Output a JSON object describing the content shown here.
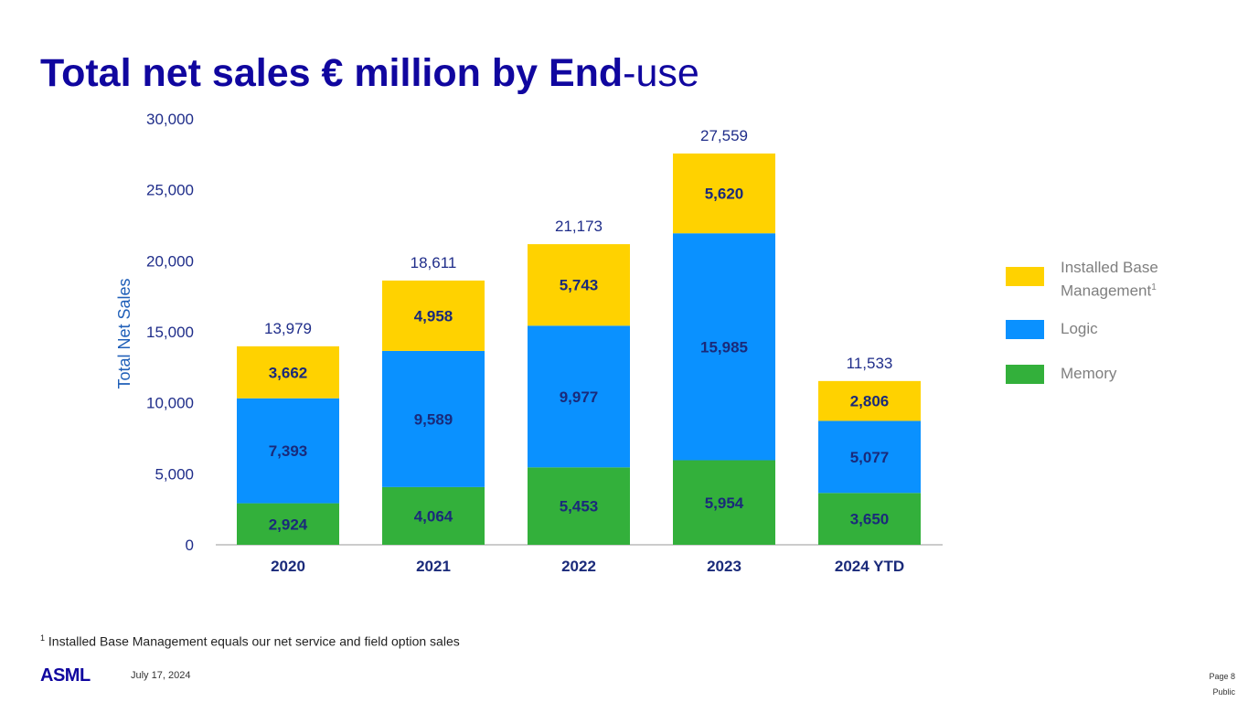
{
  "title": {
    "bold": "Total net sales € million by End",
    "light": "-use"
  },
  "chart_data": {
    "type": "bar",
    "stacked": true,
    "categories": [
      "2020",
      "2021",
      "2022",
      "2023",
      "2024 YTD"
    ],
    "series": [
      {
        "name": "Memory",
        "color": "#33B03B",
        "values": [
          2924,
          4064,
          5453,
          5954,
          3650
        ],
        "labels": [
          "2,924",
          "4,064",
          "5,453",
          "5,954",
          "3,650"
        ]
      },
      {
        "name": "Logic",
        "color": "#0A91FF",
        "values": [
          7393,
          9589,
          9977,
          15985,
          5077
        ],
        "labels": [
          "7,393",
          "9,589",
          "9,977",
          "15,985",
          "5,077"
        ]
      },
      {
        "name": "Installed Base Management",
        "color": "#FFD200",
        "values": [
          3662,
          4958,
          5743,
          5620,
          2806
        ],
        "labels": [
          "3,662",
          "4,958",
          "5,743",
          "5,620",
          "2,806"
        ]
      }
    ],
    "totals": [
      "13,979",
      "18,611",
      "21,173",
      "27,559",
      "11,533"
    ],
    "ylabel": "Total Net Sales",
    "xlabel": "",
    "ylim": [
      0,
      30000
    ],
    "yticks": [
      0,
      5000,
      10000,
      15000,
      20000,
      25000,
      30000
    ],
    "ytick_labels": [
      "0",
      "5,000",
      "10,000",
      "15,000",
      "20,000",
      "25,000",
      "30,000"
    ],
    "grid": false,
    "legend_position": "right"
  },
  "legend": {
    "items": [
      {
        "label_line1": "Installed Base",
        "label_line2": "Management",
        "sup": "1",
        "color": "#FFD200"
      },
      {
        "label": "Logic",
        "color": "#0A91FF"
      },
      {
        "label": "Memory",
        "color": "#33B03B"
      }
    ]
  },
  "footnote": {
    "sup": "1",
    "text": " Installed Base Management equals our net service and field option sales"
  },
  "footer": {
    "logo": "ASML",
    "date": "July 17, 2024",
    "page": "Page 8",
    "classification": "Public"
  }
}
